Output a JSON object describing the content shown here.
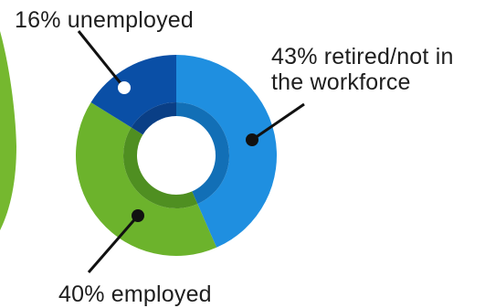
{
  "chart_data": {
    "type": "pie",
    "variant": "donut",
    "title": "",
    "slices": [
      {
        "label": "16% unemployed",
        "value": 16,
        "color": "#0a4fa6"
      },
      {
        "label": "43% retired/not in the workforce",
        "value": 43,
        "color": "#1f8fe0"
      },
      {
        "label": "40% employed",
        "value": 40,
        "color": "#6cb32c"
      }
    ],
    "inner_colors": {
      "unemployed": "#0a3f86",
      "retired": "#126fb6",
      "employed": "#4f8f21"
    },
    "accent_green": "#75b82f"
  }
}
